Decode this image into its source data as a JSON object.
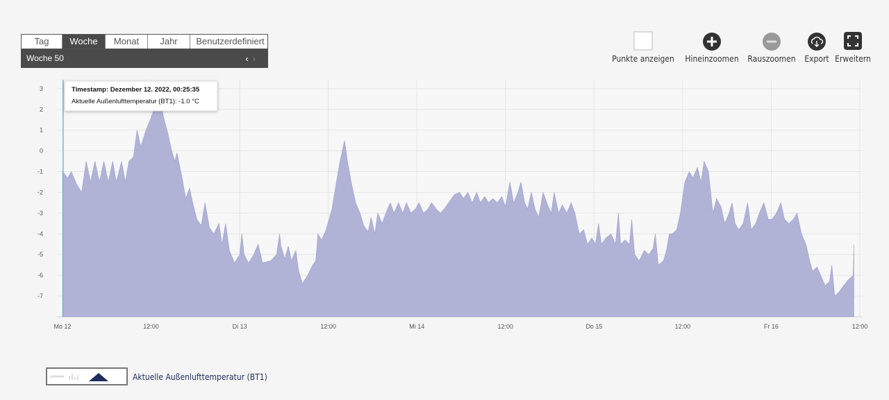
{
  "toolbar": {
    "tabs": [
      "Tag",
      "Woche",
      "Monat",
      "Jahr",
      "Benutzerdefiniert"
    ],
    "active_tab": 1,
    "period": "Woche 50",
    "buttons": [
      "Punkte anzeigen",
      "Hineinzoomen",
      "Rauszoomen",
      "Export",
      "Erweitern"
    ]
  },
  "chart_data": {
    "type": "area",
    "x": [
      0,
      0.7,
      1.2,
      1.9,
      2.6,
      3.2,
      3.8,
      4.4,
      5.0,
      5.6,
      6.2,
      6.8,
      7.3,
      8.0,
      8.5,
      9.0,
      9.6,
      10.1,
      10.6,
      11.3,
      12.0,
      12.7,
      13.2,
      13.7,
      14.3,
      14.8,
      15.2,
      15.5,
      16.2,
      16.7,
      17.2,
      17.7,
      18.2,
      18.8,
      19.3,
      19.9,
      20.5,
      21.2,
      21.6,
      22.1,
      22.6,
      23.3,
      24.0,
      24.3,
      24.6,
      25.2,
      25.9,
      26.5,
      27.1,
      28.2,
      29.0,
      29.4,
      29.6,
      30.1,
      30.6,
      31.0,
      31.6,
      32.0,
      32.5,
      33.2,
      33.9,
      34.3,
      34.6,
      35.1,
      35.7,
      36.5,
      37.1,
      37.6,
      38.2,
      38.6,
      39.1,
      39.7,
      40.3,
      40.8,
      41.4,
      41.8,
      42.3,
      42.7,
      43.3,
      43.8,
      44.4,
      44.9,
      45.5,
      46.1,
      46.6,
      47.2,
      47.8,
      48.3,
      48.9,
      49.5,
      50.0,
      50.6,
      51.2,
      51.7,
      52.5,
      53.1,
      53.8,
      54.3,
      54.9,
      55.5,
      56.1,
      56.6,
      57.2,
      57.7,
      58.3,
      58.9,
      59.5,
      60.0,
      60.6,
      61.1,
      61.7,
      62.1,
      62.6,
      63.0,
      63.5,
      64.0,
      64.5,
      65.1,
      65.7,
      66.2,
      66.6,
      67.2,
      67.7,
      68.3,
      68.9,
      69.4,
      70.0,
      70.6,
      71.1,
      71.7,
      72.2,
      72.6,
      73.0,
      73.6,
      74.3,
      74.9,
      75.3,
      75.6,
      76.2,
      76.8,
      77.1,
      77.5,
      78.1,
      78.8,
      79.4,
      80.0,
      80.3,
      80.7,
      81.4,
      81.8,
      82.2,
      82.6,
      83.2,
      83.7,
      84.3,
      84.9,
      85.4,
      86.0,
      86.5,
      86.9,
      87.5,
      88.1,
      88.6,
      89.2,
      89.7,
      90.3,
      90.7,
      91.1,
      91.6,
      92.2,
      92.8,
      93.3,
      93.9,
      94.4,
      95.0,
      95.6,
      96.1,
      96.7,
      97.3,
      97.8,
      98.4,
      99.0,
      99.5,
      100.1,
      100.7,
      101.2,
      101.6,
      102.2,
      102.7,
      103.3,
      103.9,
      104.2,
      104.6,
      105.2,
      105.8,
      106.5,
      107.1,
      107.2
    ],
    "series": [
      {
        "name": "Aktuelle Außenlufttemperatur (BT1)",
        "color": "#b0b2d6",
        "values": [
          -1,
          -1.3,
          -1.0,
          -1.6,
          -2.0,
          -0.5,
          -1.5,
          -0.5,
          -1.5,
          -0.5,
          -1.5,
          -0.5,
          -1.5,
          -0.5,
          -1.5,
          -0.5,
          -0.3,
          1.0,
          0.2,
          1.0,
          1.6,
          2.3,
          2.6,
          1.6,
          0.8,
          0.0,
          -0.5,
          -0.1,
          -1.3,
          -2.3,
          -1.8,
          -2.6,
          -3.3,
          -3.6,
          -2.5,
          -3.7,
          -4.0,
          -3.5,
          -4.5,
          -3.5,
          -4.8,
          -5.4,
          -5.0,
          -4.0,
          -5.0,
          -5.4,
          -5.0,
          -4.5,
          -5.4,
          -5.3,
          -5.0,
          -4.0,
          -4.6,
          -5.2,
          -4.6,
          -5.3,
          -4.8,
          -5.8,
          -6.4,
          -6.0,
          -5.5,
          -5.3,
          -4.0,
          -4.3,
          -3.8,
          -2.8,
          -1.5,
          -0.5,
          0.5,
          -0.5,
          -1.5,
          -2.5,
          -3.0,
          -3.6,
          -3.9,
          -3.2,
          -4.0,
          -3.0,
          -3.5,
          -3.0,
          -2.5,
          -3.0,
          -2.5,
          -3.0,
          -2.5,
          -3.0,
          -2.8,
          -2.5,
          -3.0,
          -2.8,
          -2.5,
          -2.8,
          -3.0,
          -2.8,
          -2.4,
          -2.1,
          -2.0,
          -2.3,
          -2.0,
          -2.5,
          -2.0,
          -2.5,
          -2.2,
          -2.5,
          -2.3,
          -2.5,
          -2.2,
          -2.7,
          -1.5,
          -2.5,
          -2.0,
          -1.5,
          -2.5,
          -2.8,
          -2.0,
          -2.8,
          -3.2,
          -2.0,
          -2.6,
          -3.0,
          -2.0,
          -3.0,
          -2.6,
          -3.0,
          -2.5,
          -3.0,
          -4.0,
          -3.8,
          -4.5,
          -4.2,
          -4.5,
          -3.5,
          -4.5,
          -4.2,
          -4.0,
          -4.5,
          -3.0,
          -4.5,
          -4.3,
          -4.5,
          -3.3,
          -5.0,
          -5.3,
          -4.8,
          -5.0,
          -4.7,
          -4.0,
          -5.5,
          -5.3,
          -4.8,
          -4.0,
          -4.0,
          -3.8,
          -3.0,
          -1.5,
          -1.0,
          -1.3,
          -0.8,
          -1.5,
          -0.5,
          -1.0,
          -3.0,
          -2.3,
          -2.7,
          -3.5,
          -3.0,
          -2.5,
          -3.5,
          -3.8,
          -3.5,
          -2.5,
          -3.8,
          -3.5,
          -3.0,
          -2.5,
          -3.3,
          -3.3,
          -3.0,
          -2.5,
          -3.3,
          -3.5,
          -3.3,
          -3.0,
          -4.0,
          -4.5,
          -5.3,
          -5.8,
          -5.6,
          -6.0,
          -6.5,
          -6.3,
          -5.5,
          -7.0,
          -6.8,
          -6.5,
          -6.2,
          -6.0,
          -4.5
        ]
      }
    ],
    "xlim": [
      0,
      108
    ],
    "ylim": [
      -8,
      3.43
    ],
    "xticks": [
      {
        "value": 0,
        "label": "Mo 12"
      },
      {
        "value": 12,
        "label": "12:00"
      },
      {
        "value": 24,
        "label": "Di 13"
      },
      {
        "value": 36,
        "label": "12:00"
      },
      {
        "value": 48,
        "label": "Mi 14"
      },
      {
        "value": 60,
        "label": "12:00"
      },
      {
        "value": 72,
        "label": "Do 15"
      },
      {
        "value": 84,
        "label": "12:00"
      },
      {
        "value": 96,
        "label": "Fr 16"
      },
      {
        "value": 108,
        "label": "12:00"
      }
    ],
    "yticks": [
      -7,
      -6,
      -5,
      -4,
      -3,
      -2,
      -1,
      0,
      1,
      2,
      3
    ],
    "grid": true,
    "tooltip": {
      "x": 0,
      "lines": [
        "Timestamp: Dezember 12. 2022, 00:25:35",
        "Aktuelle Außenlufttemperatur (BT1): -1.0 °C"
      ]
    }
  }
}
